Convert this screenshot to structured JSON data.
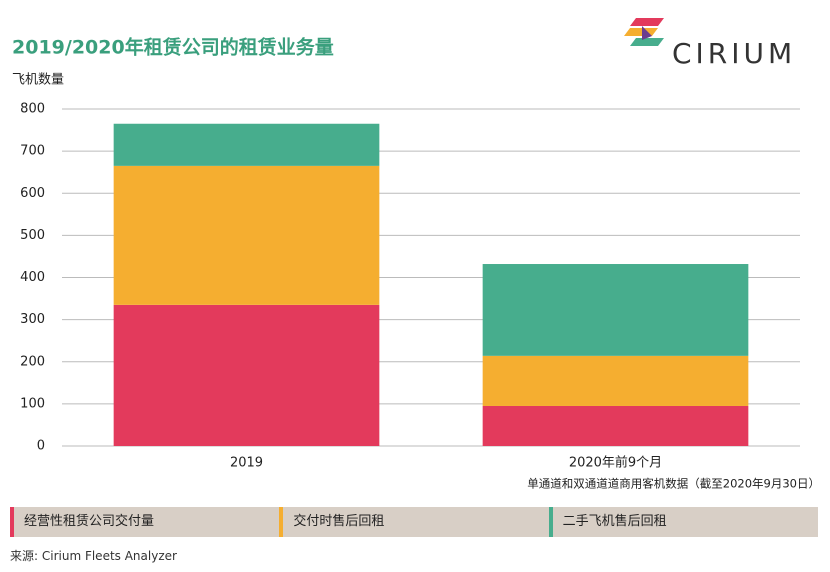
{
  "chart_data": {
    "type": "stacked_bar",
    "title": "2019/2020年租赁公司的租赁业务量",
    "y_label": "飞机数量",
    "note": "单通道和双通道道商用客机数据（截至2020年9月30日）",
    "source": "来源: Cirium Fleets Analyzer",
    "logo": "CIRIUM",
    "categories": [
      "2019",
      "2020年前9个月"
    ],
    "series": [
      {
        "name": "经营性租赁公司交付量",
        "color": "#e33a5c",
        "values": [
          335,
          95
        ]
      },
      {
        "name": "交付时售后回租",
        "color": "#f5ae30",
        "values": [
          330,
          119
        ]
      },
      {
        "name": "二手飞机售后回租",
        "color": "#47ad8d",
        "values": [
          100,
          218
        ]
      }
    ],
    "ylim": [
      0,
      800
    ],
    "yticks": [
      0,
      100,
      200,
      300,
      400,
      500,
      600,
      700,
      800
    ],
    "grid": true
  }
}
